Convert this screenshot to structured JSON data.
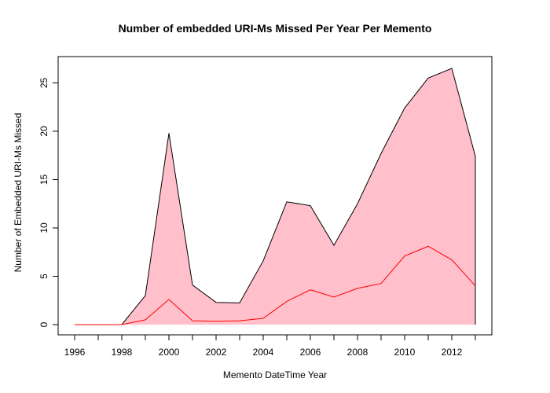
{
  "chart_data": {
    "type": "area",
    "title": "Number of embedded URI-Ms Missed Per Year Per Memento",
    "xlabel": "Memento DateTime Year",
    "ylabel": "Number of Embedded URI-Ms Missed",
    "x": [
      1996,
      1997,
      1998,
      1999,
      2000,
      2001,
      2002,
      2003,
      2004,
      2005,
      2006,
      2007,
      2008,
      2009,
      2010,
      2011,
      2012,
      2013
    ],
    "series": [
      {
        "values": [
          0,
          0,
          0,
          3.0,
          19.8,
          4.1,
          2.3,
          2.25,
          6.6,
          12.7,
          12.3,
          8.2,
          12.5,
          17.7,
          22.4,
          25.5,
          26.5,
          17.4
        ],
        "color": "#000000",
        "fill": "#ffc0cb"
      },
      {
        "values": [
          0,
          0,
          0,
          0.5,
          2.6,
          0.4,
          0.35,
          0.4,
          0.65,
          2.4,
          3.6,
          2.85,
          3.75,
          4.25,
          7.1,
          8.1,
          6.7,
          4.0
        ],
        "color": "#ff0000"
      }
    ],
    "xlim": [
      1996,
      2013
    ],
    "ylim": [
      0,
      26.5
    ],
    "xticks": [
      1996,
      1997,
      1998,
      1999,
      2000,
      2001,
      2002,
      2003,
      2004,
      2005,
      2006,
      2007,
      2008,
      2009,
      2010,
      2011,
      2012,
      2013
    ],
    "xtick_labels": [
      "1996",
      "",
      "1998",
      "",
      "2000",
      "",
      "2002",
      "",
      "2004",
      "",
      "2006",
      "",
      "2008",
      "",
      "2010",
      "",
      "2012",
      ""
    ],
    "yticks": [
      0,
      5,
      10,
      15,
      20,
      25
    ],
    "ytick_labels": [
      "0",
      "5",
      "10",
      "15",
      "20",
      "25"
    ],
    "grid": false,
    "legend": "none"
  }
}
